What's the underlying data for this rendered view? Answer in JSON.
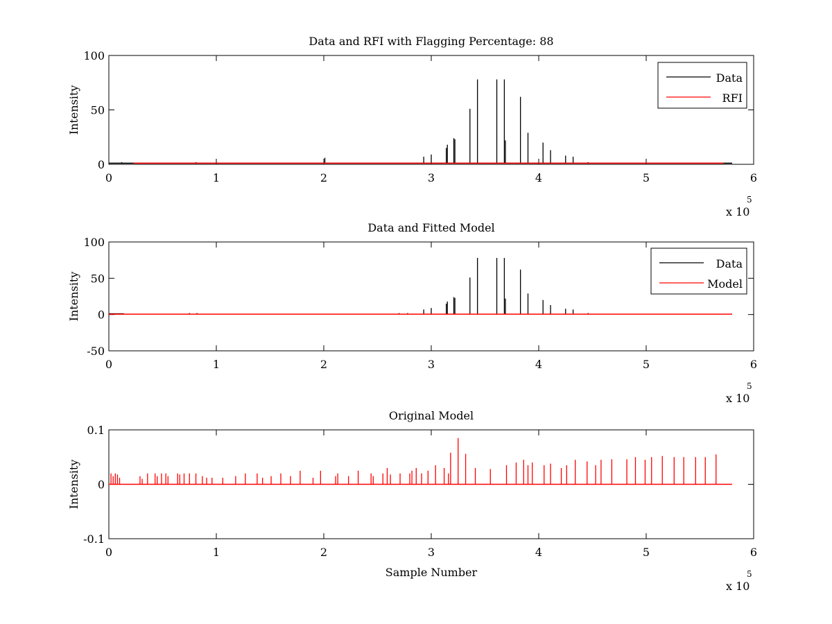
{
  "chart_data": [
    {
      "type": "line",
      "title": "Data and RFI with Flagging Percentage: 88",
      "xlabel": "",
      "ylabel": "Intensity",
      "xlim": [
        0,
        600000
      ],
      "ylim": [
        0,
        100
      ],
      "xticks": [
        0,
        100000,
        200000,
        300000,
        400000,
        500000,
        600000
      ],
      "xtick_labels": [
        "0",
        "1",
        "2",
        "3",
        "4",
        "5",
        "6"
      ],
      "yticks": [
        0,
        50,
        100
      ],
      "ytick_labels": [
        "0",
        "50",
        "100"
      ],
      "x_exponent_label": "x 10",
      "x_exponent_power": "5",
      "legend_position": "top-right",
      "series": [
        {
          "name": "Data",
          "color": "#000000",
          "baseline": 1,
          "baseline_x": [
            0,
            580000
          ],
          "spikes": [
            [
              293000,
              7
            ],
            [
              300000,
              9
            ],
            [
              314000,
              15
            ],
            [
              315000,
              18
            ],
            [
              321000,
              24
            ],
            [
              322000,
              23
            ],
            [
              336000,
              51
            ],
            [
              343000,
              78
            ],
            [
              361000,
              78
            ],
            [
              368000,
              78
            ],
            [
              369000,
              22
            ],
            [
              383000,
              62
            ],
            [
              390000,
              29
            ],
            [
              404000,
              20
            ],
            [
              411000,
              13
            ],
            [
              425000,
              8
            ],
            [
              432000,
              7
            ],
            [
              446000,
              2
            ],
            [
              201000,
              6
            ],
            [
              81000,
              2
            ],
            [
              12000,
              2
            ]
          ]
        },
        {
          "name": "RFI",
          "color": "#ff0000",
          "baseline": 1,
          "baseline_x": [
            23000,
            572000
          ],
          "spikes": []
        }
      ]
    },
    {
      "type": "line",
      "title": "Data and Fitted Model",
      "xlabel": "",
      "ylabel": "Intensity",
      "xlim": [
        0,
        600000
      ],
      "ylim": [
        -50,
        100
      ],
      "xticks": [
        0,
        100000,
        200000,
        300000,
        400000,
        500000,
        600000
      ],
      "xtick_labels": [
        "0",
        "1",
        "2",
        "3",
        "4",
        "5",
        "6"
      ],
      "yticks": [
        -50,
        0,
        50,
        100
      ],
      "ytick_labels": [
        "-50",
        "0",
        "50",
        "100"
      ],
      "x_exponent_label": "x 10",
      "x_exponent_power": "5",
      "legend_position": "top-right",
      "series": [
        {
          "name": "Data",
          "color": "#000000",
          "baseline": 1,
          "baseline_x": [
            0,
            14000
          ],
          "spikes": [
            [
              270000,
              2
            ],
            [
              278000,
              2
            ],
            [
              293000,
              7
            ],
            [
              300000,
              9
            ],
            [
              314000,
              15
            ],
            [
              315000,
              18
            ],
            [
              321000,
              24
            ],
            [
              322000,
              23
            ],
            [
              336000,
              51
            ],
            [
              343000,
              78
            ],
            [
              361000,
              78
            ],
            [
              368000,
              78
            ],
            [
              369000,
              22
            ],
            [
              383000,
              62
            ],
            [
              390000,
              29
            ],
            [
              404000,
              20
            ],
            [
              411000,
              13
            ],
            [
              425000,
              8
            ],
            [
              432000,
              7
            ],
            [
              446000,
              2
            ],
            [
              75000,
              2
            ],
            [
              82000,
              2
            ]
          ]
        },
        {
          "name": "Model",
          "color": "#ff0000",
          "baseline": 0.5,
          "baseline_x": [
            0,
            580000
          ],
          "spikes": []
        }
      ]
    },
    {
      "type": "line",
      "title": "Original Model",
      "xlabel": "Sample Number",
      "ylabel": "Intensity",
      "xlim": [
        0,
        600000
      ],
      "ylim": [
        -0.1,
        0.1
      ],
      "xticks": [
        0,
        100000,
        200000,
        300000,
        400000,
        500000,
        600000
      ],
      "xtick_labels": [
        "0",
        "1",
        "2",
        "3",
        "4",
        "5",
        "6"
      ],
      "yticks": [
        -0.1,
        0,
        0.1
      ],
      "ytick_labels": [
        "-0.1",
        "0",
        "0.1"
      ],
      "x_exponent_label": "x 10",
      "x_exponent_power": "5",
      "legend_position": "none",
      "series": [
        {
          "name": "",
          "color": "#ff0000",
          "baseline": 0,
          "baseline_x": [
            0,
            580000
          ],
          "spikes": [
            [
              2000,
              0.02
            ],
            [
              4000,
              0.015
            ],
            [
              6000,
              0.02
            ],
            [
              8000,
              0.018
            ],
            [
              10000,
              0.012
            ],
            [
              29000,
              0.015
            ],
            [
              31000,
              0.01
            ],
            [
              36000,
              0.02
            ],
            [
              43000,
              0.02
            ],
            [
              45000,
              0.015
            ],
            [
              49000,
              0.02
            ],
            [
              53000,
              0.02
            ],
            [
              55000,
              0.015
            ],
            [
              64000,
              0.02
            ],
            [
              66000,
              0.018
            ],
            [
              70000,
              0.02
            ],
            [
              75000,
              0.02
            ],
            [
              81000,
              0.02
            ],
            [
              87000,
              0.015
            ],
            [
              91000,
              0.012
            ],
            [
              96000,
              0.012
            ],
            [
              106000,
              0.012
            ],
            [
              118000,
              0.015
            ],
            [
              127000,
              0.02
            ],
            [
              138000,
              0.02
            ],
            [
              143000,
              0.012
            ],
            [
              151000,
              0.015
            ],
            [
              160000,
              0.02
            ],
            [
              169000,
              0.015
            ],
            [
              178000,
              0.025
            ],
            [
              190000,
              0.012
            ],
            [
              197000,
              0.025
            ],
            [
              211000,
              0.015
            ],
            [
              213000,
              0.02
            ],
            [
              223000,
              0.015
            ],
            [
              232000,
              0.025
            ],
            [
              244000,
              0.02
            ],
            [
              246000,
              0.015
            ],
            [
              255000,
              0.02
            ],
            [
              259000,
              0.03
            ],
            [
              262000,
              0.018
            ],
            [
              271000,
              0.02
            ],
            [
              280000,
              0.02
            ],
            [
              282000,
              0.025
            ],
            [
              286000,
              0.03
            ],
            [
              291000,
              0.02
            ],
            [
              297000,
              0.025
            ],
            [
              304000,
              0.035
            ],
            [
              312000,
              0.03
            ],
            [
              316000,
              0.02
            ],
            [
              318000,
              0.058
            ],
            [
              325000,
              0.085
            ],
            [
              332000,
              0.056
            ],
            [
              341000,
              0.03
            ],
            [
              355000,
              0.028
            ],
            [
              370000,
              0.035
            ],
            [
              379000,
              0.04
            ],
            [
              386000,
              0.045
            ],
            [
              390000,
              0.035
            ],
            [
              394000,
              0.04
            ],
            [
              405000,
              0.035
            ],
            [
              411000,
              0.038
            ],
            [
              421000,
              0.03
            ],
            [
              426000,
              0.035
            ],
            [
              434000,
              0.045
            ],
            [
              445000,
              0.042
            ],
            [
              453000,
              0.035
            ],
            [
              458000,
              0.045
            ],
            [
              468000,
              0.046
            ],
            [
              482000,
              0.046
            ],
            [
              490000,
              0.05
            ],
            [
              499000,
              0.045
            ],
            [
              505000,
              0.05
            ],
            [
              515000,
              0.052
            ],
            [
              526000,
              0.05
            ],
            [
              535000,
              0.05
            ],
            [
              546000,
              0.05
            ],
            [
              555000,
              0.05
            ],
            [
              565000,
              0.055
            ]
          ]
        }
      ]
    }
  ]
}
